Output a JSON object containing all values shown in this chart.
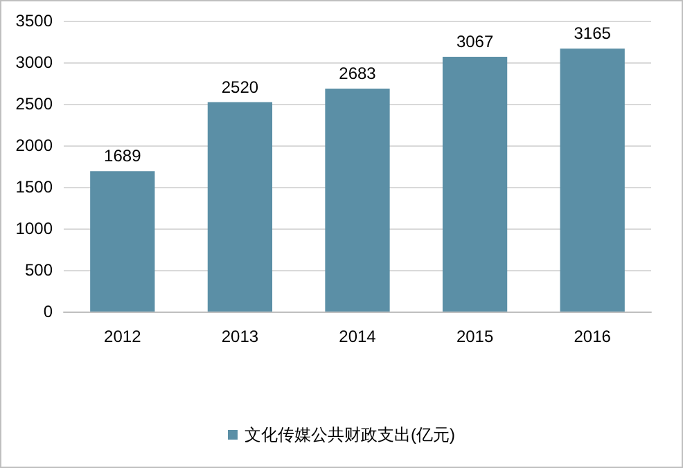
{
  "chart_data": {
    "type": "bar",
    "categories": [
      "2012",
      "2013",
      "2014",
      "2015",
      "2016"
    ],
    "series": [
      {
        "name": "文化传媒公共财政支出(亿元)",
        "color": "#5b8fa6",
        "values": [
          1689,
          2520,
          2683,
          3067,
          3165
        ]
      }
    ],
    "data_labels": true,
    "ylim": [
      0,
      3500
    ],
    "yticks": [
      0,
      500,
      1000,
      1500,
      2000,
      2500,
      3000,
      3500
    ],
    "grid": "y",
    "legend": "bottom"
  }
}
